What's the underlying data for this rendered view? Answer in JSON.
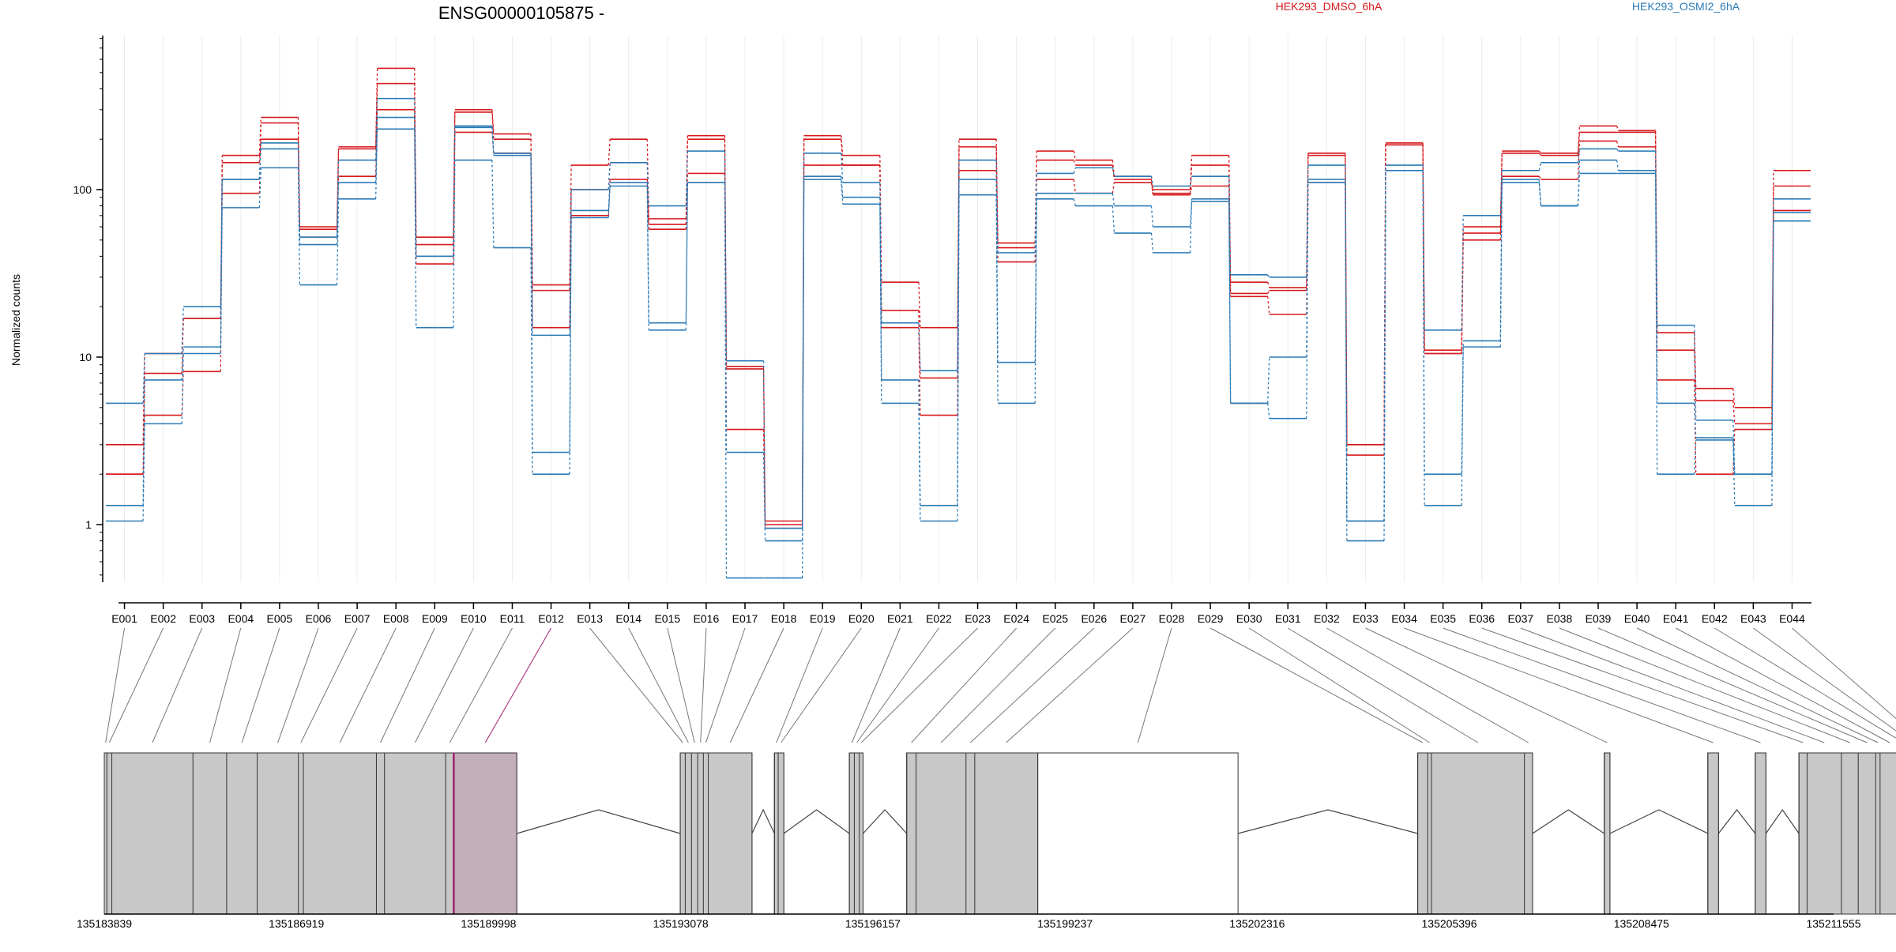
{
  "title": "ENSG00000105875 -",
  "ylabel": "Normalized counts",
  "legend": [
    {
      "name": "HEK293_DMSO_6hA",
      "color": "#d7191c"
    },
    {
      "name": "HEK293_OSMI2_6hA",
      "color": "#2c7bb6"
    }
  ],
  "colors": {
    "dmso": "#d7191c",
    "osmi": "#2c7bb6",
    "exon_fill": "#c8c8c8",
    "highlight": "#a0206e"
  },
  "chart_data": {
    "type": "line",
    "title": "ENSG00000105875 -",
    "xlabel": "",
    "ylabel": "Normalized counts",
    "y_scale": "log",
    "y_ticks": [
      1,
      10,
      100
    ],
    "y_tick_labels": [
      "1",
      "10",
      "100"
    ],
    "ylim": [
      0.5,
      800
    ],
    "grid": "vertical",
    "legend_position": "top-right",
    "categories": [
      "E001",
      "E002",
      "E003",
      "E004",
      "E005",
      "E006",
      "E007",
      "E008",
      "E009",
      "E010",
      "E011",
      "E012",
      "E013",
      "E014",
      "E015",
      "E016",
      "E017",
      "E018",
      "E019",
      "E020",
      "E021",
      "E022",
      "E023",
      "E024",
      "E025",
      "E026",
      "E027",
      "E028",
      "E029",
      "E030",
      "E031",
      "E032",
      "E033",
      "E034",
      "E035",
      "E036",
      "E037",
      "E038",
      "E039",
      "E040",
      "E041",
      "E042",
      "E043",
      "E044"
    ],
    "series": [
      {
        "name": "HEK293_DMSO_6hA",
        "group": "dmso",
        "values": [
          3.0,
          10.5,
          17,
          160,
          270,
          60,
          180,
          530,
          52,
          300,
          215,
          27,
          140,
          200,
          67,
          210,
          8.8,
          1.0,
          210,
          160,
          28,
          15,
          200,
          48,
          170,
          150,
          120,
          100,
          160,
          28,
          26,
          165,
          3.0,
          190,
          11,
          60,
          170,
          165,
          240,
          225,
          14,
          6.5,
          5.0,
          130
        ]
      },
      {
        "name": "HEK293_DMSO_6hA",
        "group": "dmso",
        "values": [
          2.0,
          8.0,
          17,
          95,
          250,
          58,
          175,
          430,
          47,
          290,
          200,
          25,
          100,
          145,
          62,
          200,
          8.5,
          1.05,
          200,
          140,
          19,
          7.5,
          180,
          45,
          150,
          140,
          115,
          95,
          140,
          24,
          25,
          160,
          3.0,
          185,
          10.5,
          55,
          165,
          160,
          220,
          220,
          11,
          5.5,
          4.0,
          105
        ]
      },
      {
        "name": "HEK293_DMSO_6hA",
        "group": "dmso",
        "values": [
          2.0,
          4.5,
          8.2,
          145,
          200,
          52,
          120,
          300,
          36,
          220,
          165,
          15,
          70,
          115,
          58,
          125,
          3.7,
          0.95,
          140,
          140,
          15,
          4.5,
          130,
          37,
          115,
          95,
          110,
          93,
          105,
          23,
          18,
          110,
          2.6,
          185,
          10.5,
          50,
          120,
          115,
          195,
          180,
          7.3,
          2.0,
          3.7,
          75
        ]
      },
      {
        "name": "HEK293_OSMI2_6hA",
        "group": "osmi",
        "values": [
          5.3,
          10.5,
          20,
          115,
          190,
          47,
          150,
          350,
          40,
          240,
          160,
          13.5,
          100,
          145,
          80,
          170,
          9.5,
          0.95,
          165,
          110,
          16,
          8.3,
          150,
          42,
          125,
          135,
          120,
          105,
          120,
          31,
          30,
          140,
          1.05,
          140,
          14.5,
          70,
          130,
          145,
          175,
          170,
          15.5,
          4.2,
          2.0,
          88
        ]
      },
      {
        "name": "HEK293_OSMI2_6hA",
        "group": "osmi",
        "values": [
          1.3,
          7.3,
          11.5,
          115,
          175,
          52,
          110,
          270,
          40,
          235,
          165,
          2.7,
          75,
          110,
          16,
          110,
          2.7,
          0.8,
          120,
          90,
          7.3,
          1.3,
          115,
          9.3,
          95,
          95,
          80,
          60,
          85,
          5.3,
          10,
          115,
          1.05,
          130,
          2.0,
          12.5,
          110,
          80,
          150,
          130,
          5.3,
          3.3,
          2.0,
          73
        ]
      },
      {
        "name": "HEK293_OSMI2_6hA",
        "group": "osmi",
        "values": [
          1.05,
          4.0,
          10.5,
          78,
          135,
          27,
          88,
          230,
          15,
          150,
          45,
          2.0,
          68,
          105,
          14.5,
          110,
          0.48,
          0.48,
          115,
          82,
          5.3,
          1.05,
          93,
          5.3,
          88,
          80,
          55,
          42,
          88,
          5.3,
          4.3,
          110,
          0.8,
          130,
          1.3,
          11.5,
          115,
          80,
          125,
          125,
          2.0,
          3.2,
          1.3,
          65
        ]
      }
    ]
  },
  "gene_model": {
    "genomic_ticks": [
      "135183839",
      "135186919",
      "135189998",
      "135193078",
      "135196157",
      "135199237",
      "135202316",
      "135205396",
      "135208475",
      "135211555"
    ],
    "genomic_range": [
      135183839,
      135211555
    ],
    "exon_bins": [
      [
        135183839,
        135183880
      ],
      [
        135183880,
        135183960
      ],
      [
        135183960,
        135185260
      ],
      [
        135185260,
        135185800
      ],
      [
        135185800,
        135186290
      ],
      [
        135186290,
        135186950
      ],
      [
        135186950,
        135187030
      ],
      [
        135187030,
        135188200
      ],
      [
        135188200,
        135188330
      ],
      [
        135188330,
        135189310
      ],
      [
        135189310,
        135189440
      ],
      [
        135189440,
        135190450
      ],
      [
        135193070,
        135193150
      ],
      [
        135193150,
        135193250
      ],
      [
        135193250,
        135193350
      ],
      [
        135193350,
        135193440
      ],
      [
        135193440,
        135193520
      ],
      [
        135193520,
        135194220
      ],
      [
        135194580,
        135194640
      ],
      [
        135194640,
        135194730
      ],
      [
        135195780,
        135195860
      ],
      [
        135195860,
        135195940
      ],
      [
        135195940,
        135196000
      ],
      [
        135196700,
        135196850
      ],
      [
        135196850,
        135197650
      ],
      [
        135197650,
        135197790
      ],
      [
        135197790,
        135198800
      ],
      [
        135198800,
        135202010
      ],
      [
        135204890,
        135205050
      ],
      [
        135205050,
        135205110
      ],
      [
        135205110,
        135206600
      ],
      [
        135206600,
        135206730
      ],
      [
        135207880,
        135207970
      ],
      [
        135209540,
        135209710
      ],
      [
        135210300,
        135210470
      ],
      [
        135211000,
        135211130
      ],
      [
        135211130,
        135211680
      ],
      [
        135211680,
        135211950
      ],
      [
        135211950,
        135212230
      ],
      [
        135212230,
        135212300
      ],
      [
        135212300,
        135212610
      ],
      [
        135212610,
        135212740
      ],
      [
        135212740,
        135212900
      ],
      [
        135212900,
        135213100
      ]
    ],
    "exon_blocks": [
      [
        135183839,
        135190450
      ],
      [
        135193070,
        135194220
      ],
      [
        135194580,
        135194730
      ],
      [
        135195780,
        135196000
      ],
      [
        135196700,
        135202010
      ],
      [
        135204890,
        135206730
      ],
      [
        135207880,
        135207970
      ],
      [
        135209540,
        135209710
      ],
      [
        135210300,
        135210470
      ],
      [
        135211000,
        135213100
      ]
    ],
    "filled_blocks": [
      [
        135183839,
        135190450
      ],
      [
        135193070,
        135194220
      ],
      [
        135194580,
        135194730
      ],
      [
        135195780,
        135196000
      ],
      [
        135196700,
        135198800
      ],
      [
        135204890,
        135206730
      ],
      [
        135207880,
        135207970
      ],
      [
        135209540,
        135209710
      ],
      [
        135210300,
        135210470
      ],
      [
        135211000,
        135213100
      ]
    ],
    "highlighted_bin": 11
  }
}
